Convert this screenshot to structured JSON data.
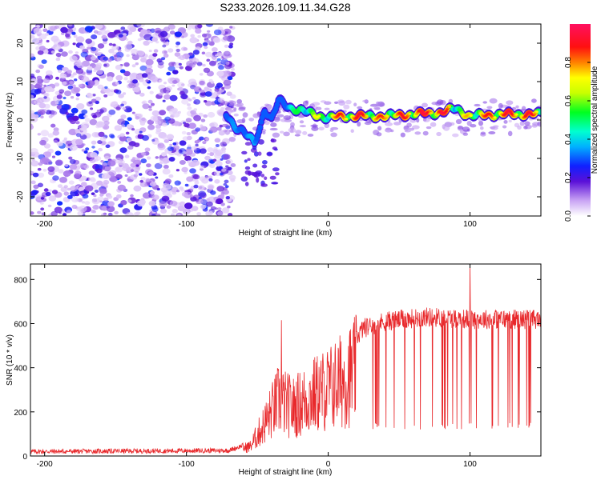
{
  "title": "S233.2026.109.11.34.G28",
  "chart_data": [
    {
      "type": "heatmap",
      "xlabel": "Height of straight line (km)",
      "ylabel": "Frequency (Hz)",
      "xlim": [
        -210,
        150
      ],
      "ylim": [
        -25,
        25
      ],
      "xticks": [
        "-200",
        "-100",
        "0",
        "100"
      ],
      "yticks": [
        "-20",
        "-10",
        "0",
        "10",
        "20"
      ],
      "noise_region_x": [
        -210,
        -75
      ],
      "ridge": [
        {
          "x": -72,
          "f": 1.5,
          "a": 0.3
        },
        {
          "x": -66,
          "f": -1.5,
          "a": 0.35
        },
        {
          "x": -60,
          "f": -3.0,
          "a": 0.4
        },
        {
          "x": -56,
          "f": -4.5,
          "a": 0.4
        },
        {
          "x": -52,
          "f": -6.0,
          "a": 0.35
        },
        {
          "x": -48,
          "f": -2.0,
          "a": 0.2
        },
        {
          "x": -45,
          "f": 3.0,
          "a": 0.15
        },
        {
          "x": -40,
          "f": 0.0,
          "a": 0.25
        },
        {
          "x": -35,
          "f": 5.0,
          "a": 0.3
        },
        {
          "x": -30,
          "f": 4.0,
          "a": 0.4
        },
        {
          "x": -25,
          "f": 3.0,
          "a": 0.5
        },
        {
          "x": -20,
          "f": 2.5,
          "a": 0.55
        },
        {
          "x": -15,
          "f": 2.0,
          "a": 0.6
        },
        {
          "x": -10,
          "f": 1.5,
          "a": 0.65
        },
        {
          "x": -5,
          "f": 1.0,
          "a": 0.6
        },
        {
          "x": 0,
          "f": 0.5,
          "a": 0.7
        },
        {
          "x": 10,
          "f": 1.0,
          "a": 0.8
        },
        {
          "x": 20,
          "f": 1.0,
          "a": 0.85
        },
        {
          "x": 40,
          "f": 1.0,
          "a": 0.75
        },
        {
          "x": 60,
          "f": 1.5,
          "a": 0.85
        },
        {
          "x": 80,
          "f": 2.0,
          "a": 0.9
        },
        {
          "x": 90,
          "f": 3.0,
          "a": 0.6
        },
        {
          "x": 100,
          "f": 1.0,
          "a": 0.7
        },
        {
          "x": 120,
          "f": 1.5,
          "a": 0.85
        },
        {
          "x": 140,
          "f": 1.5,
          "a": 0.85
        },
        {
          "x": 150,
          "f": 1.5,
          "a": 0.8
        }
      ]
    },
    {
      "type": "line",
      "xlabel": "Height of straight line (km)",
      "ylabel": "SNR (10 * v/v)",
      "xlim": [
        -210,
        150
      ],
      "ylim": [
        0,
        870
      ],
      "xticks": [
        "-200",
        "-100",
        "0",
        "100"
      ],
      "yticks": [
        "0",
        "200",
        "400",
        "600",
        "800"
      ],
      "color": "#e8282b",
      "envelope": [
        {
          "x": -210,
          "snr": 20
        },
        {
          "x": -70,
          "snr": 25
        },
        {
          "x": -55,
          "snr": 60
        },
        {
          "x": -45,
          "snr": 200
        },
        {
          "x": -35,
          "snr": 350
        },
        {
          "x": -25,
          "snr": 300
        },
        {
          "x": -10,
          "snr": 380
        },
        {
          "x": 0,
          "snr": 420
        },
        {
          "x": 15,
          "snr": 500
        },
        {
          "x": 25,
          "snr": 580
        },
        {
          "x": 40,
          "snr": 610
        },
        {
          "x": 70,
          "snr": 630
        },
        {
          "x": 100,
          "snr": 620
        },
        {
          "x": 150,
          "snr": 620
        }
      ],
      "spikes": [
        {
          "x": 100,
          "snr": 870
        },
        {
          "x": -33,
          "snr": 610
        }
      ]
    }
  ],
  "colorbar": {
    "label": "Normalized spectral amplitude",
    "ticks": [
      "0.0",
      "0.2",
      "0.4",
      "0.6",
      "0.8"
    ],
    "range": [
      0,
      1
    ]
  }
}
